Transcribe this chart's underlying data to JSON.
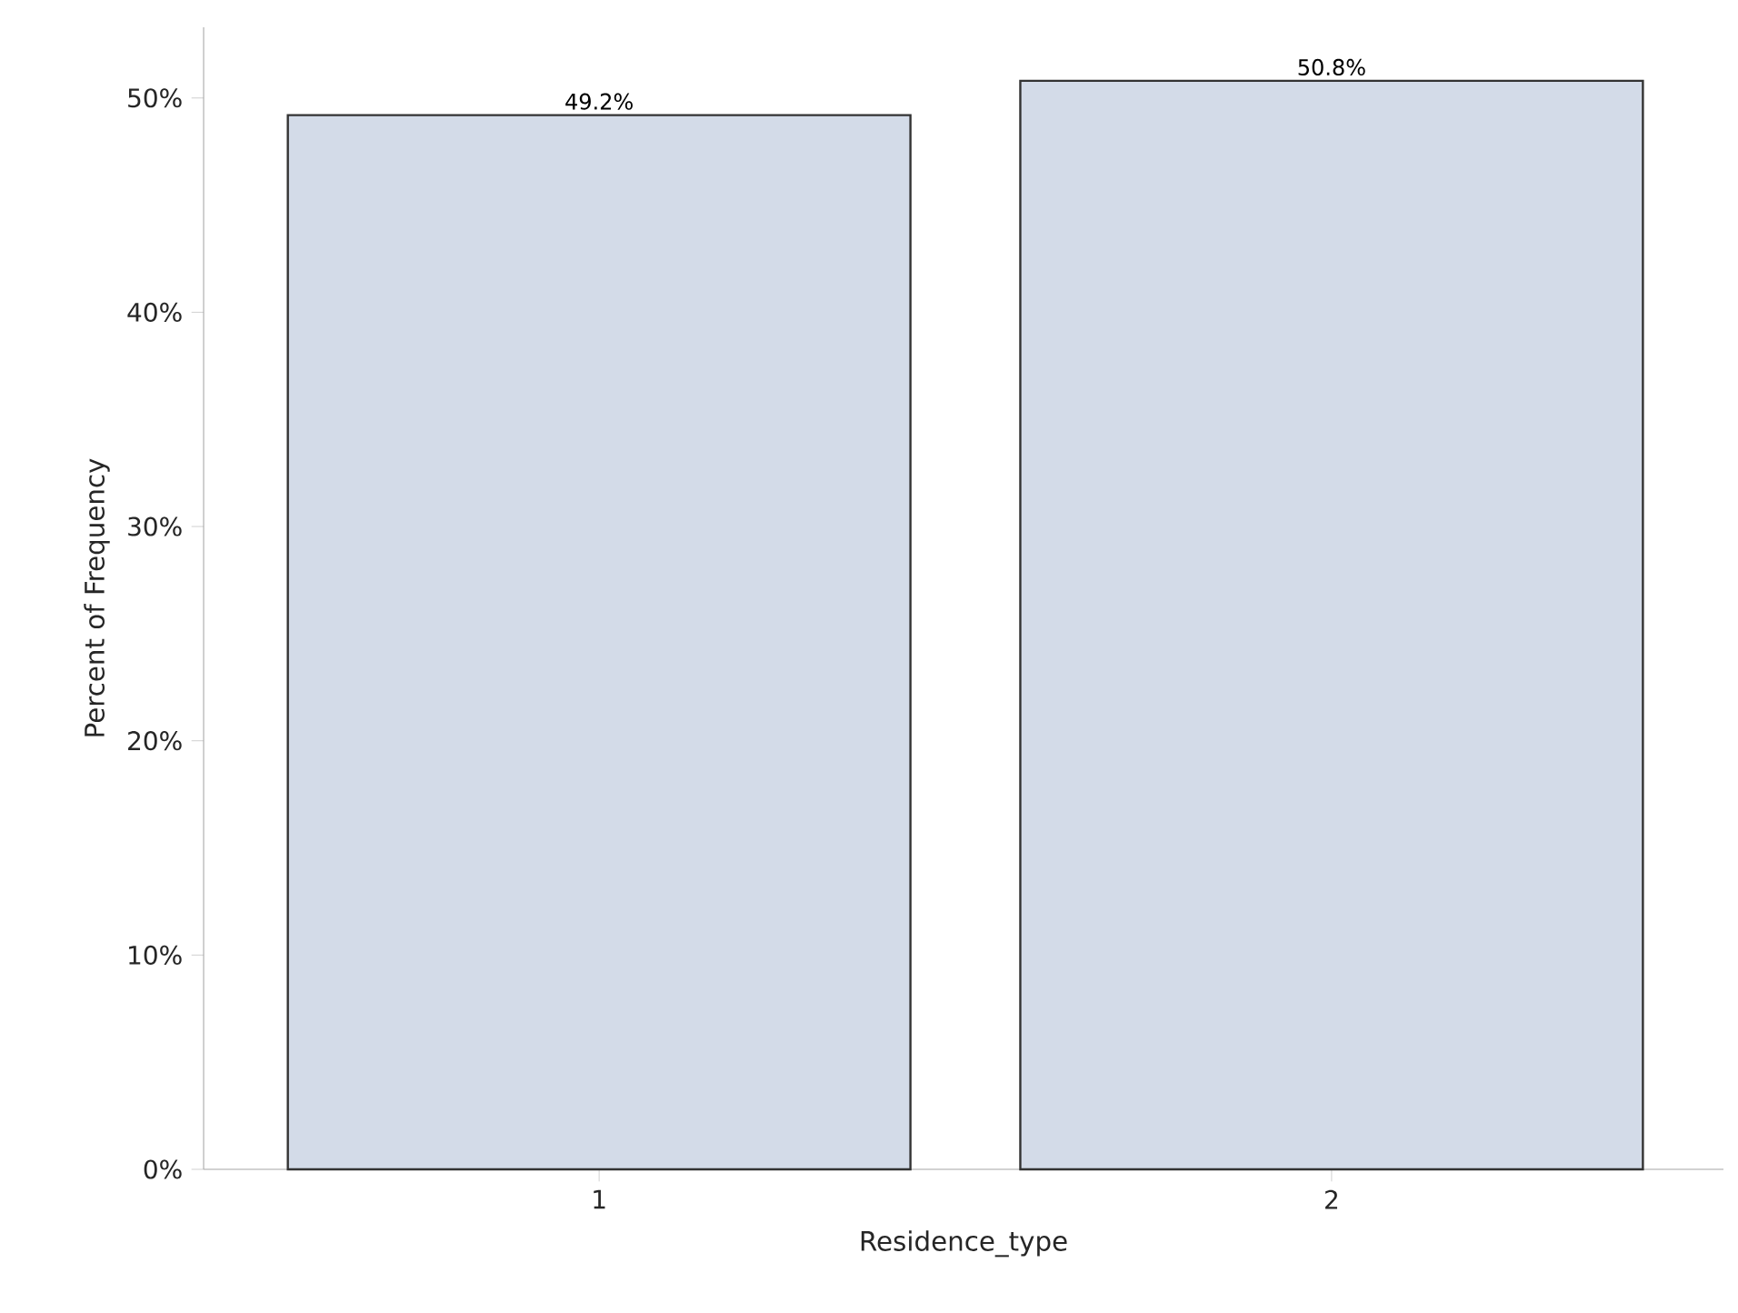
{
  "chart_data": {
    "type": "bar",
    "xlabel": "Residence_type",
    "ylabel": "Percent of Frequency",
    "categories": [
      "1",
      "2"
    ],
    "values": [
      49.2,
      50.8
    ],
    "value_labels": [
      "49.2%",
      "50.8%"
    ],
    "color": "#d3dbe8",
    "ylim": [
      0,
      53.3
    ],
    "yticks": [
      {
        "value": 0,
        "label": "0%"
      },
      {
        "value": 10,
        "label": "10%"
      },
      {
        "value": 20,
        "label": "20%"
      },
      {
        "value": 30,
        "label": "30%"
      },
      {
        "value": 40,
        "label": "40%"
      },
      {
        "value": 50,
        "label": "50%"
      }
    ],
    "grid": false
  }
}
